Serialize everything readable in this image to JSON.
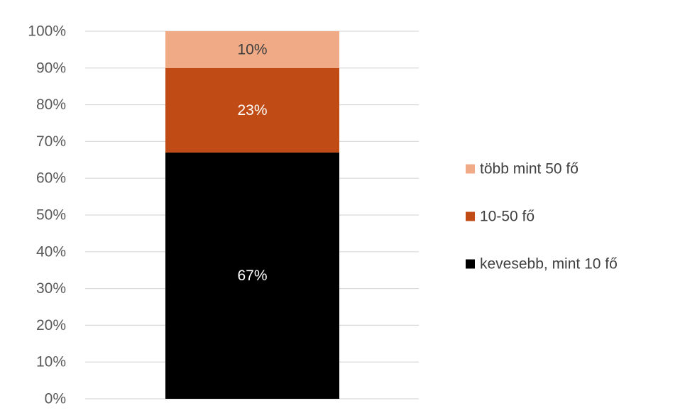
{
  "chart_data": {
    "type": "bar",
    "stacked": true,
    "categories": [
      ""
    ],
    "series": [
      {
        "name": "kevesebb, mint 10 fő",
        "values": [
          67
        ],
        "color": "#000000",
        "label": "67%",
        "label_color": "#ffffff"
      },
      {
        "name": "10-50 fő",
        "values": [
          23
        ],
        "color": "#c04b15",
        "label": "23%",
        "label_color": "#ffffff"
      },
      {
        "name": "több mint 50 fő",
        "values": [
          10
        ],
        "color": "#f0aa85",
        "label": "10%",
        "label_color": "#404040"
      }
    ],
    "y_ticks": [
      "0%",
      "10%",
      "20%",
      "30%",
      "40%",
      "50%",
      "60%",
      "70%",
      "80%",
      "90%",
      "100%"
    ],
    "ylim": [
      0,
      100
    ],
    "grid": true,
    "legend": {
      "placement": "right",
      "entries": [
        "több mint 50 fő",
        "10-50 fő",
        "kevesebb, mint 10 fő"
      ]
    }
  }
}
